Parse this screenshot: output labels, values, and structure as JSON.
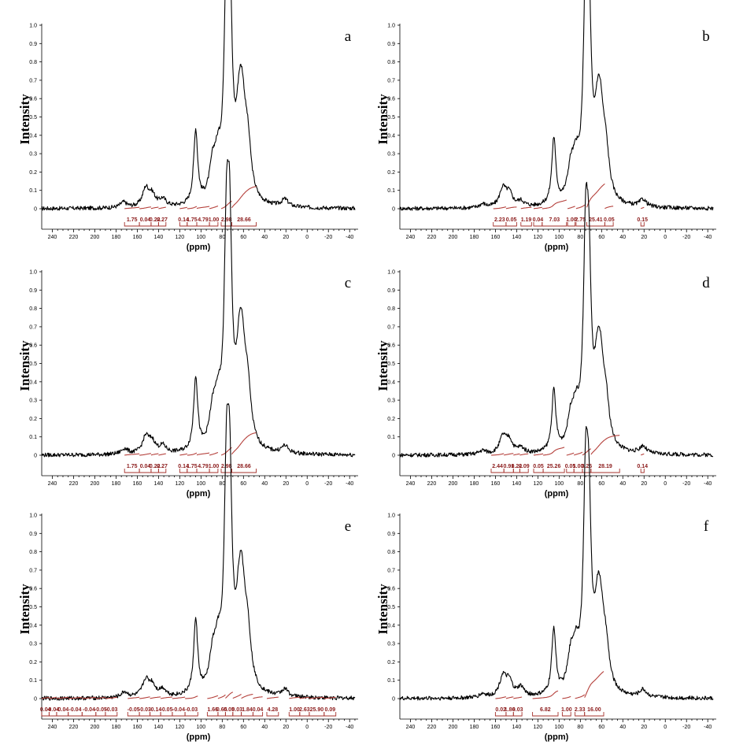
{
  "chart_data": [
    {
      "type": "line",
      "panel_label": "a",
      "ylabel": "Intensity",
      "xlabel": "(ppm)",
      "xlim": [
        250,
        -48
      ],
      "ylim": [
        -0.08,
        1.0
      ],
      "x_ticks": [
        "240",
        "220",
        "200",
        "180",
        "160",
        "140",
        "120",
        "100",
        "80",
        "60",
        "40",
        "20",
        "0",
        "-20",
        "-40"
      ],
      "y_ticks": [
        "0",
        "0.1",
        "0.2",
        "0.3",
        "0.4",
        "0.5",
        "0.6",
        "0.7",
        "0.8",
        "0.9",
        "1.0"
      ],
      "peaks": [
        [
          173,
          0.03
        ],
        [
          152,
          0.1
        ],
        [
          146,
          0.06
        ],
        [
          136,
          0.04
        ],
        [
          105,
          0.4
        ],
        [
          89,
          0.17
        ],
        [
          84,
          0.18
        ],
        [
          76,
          1.0
        ],
        [
          73,
          0.99
        ],
        [
          64,
          0.35
        ],
        [
          61,
          0.36
        ],
        [
          56,
          0.26
        ],
        [
          21,
          0.04
        ]
      ],
      "integrals": [
        {
          "from": 172,
          "to": 158,
          "label": "1.75"
        },
        {
          "from": 158,
          "to": 147,
          "label": "0.04"
        },
        {
          "from": 147,
          "to": 140,
          "label": "0.22"
        },
        {
          "from": 140,
          "to": 133,
          "label": "0.27"
        },
        {
          "from": 120,
          "to": 113,
          "label": "0.14"
        },
        {
          "from": 113,
          "to": 104,
          "label": "1.75"
        },
        {
          "from": 104,
          "to": 92,
          "label": "4.79"
        },
        {
          "from": 92,
          "to": 84,
          "label": "1.00"
        },
        {
          "from": 81,
          "to": 71,
          "label": "2.98"
        },
        {
          "from": 71,
          "to": 48,
          "label": "28.66"
        }
      ]
    },
    {
      "type": "line",
      "panel_label": "b",
      "ylabel": "Intensity",
      "xlabel": "(ppm)",
      "xlim": [
        250,
        -48
      ],
      "ylim": [
        -0.08,
        1.0
      ],
      "x_ticks": [
        "240",
        "220",
        "200",
        "180",
        "160",
        "140",
        "120",
        "100",
        "80",
        "60",
        "40",
        "20",
        "0",
        "-20",
        "-40"
      ],
      "y_ticks": [
        "0",
        "0.1",
        "0.2",
        "0.3",
        "0.4",
        "0.5",
        "0.6",
        "0.7",
        "0.8",
        "0.9",
        "1.0"
      ],
      "peaks": [
        [
          172,
          0.02
        ],
        [
          153,
          0.1
        ],
        [
          147,
          0.07
        ],
        [
          136,
          0.03
        ],
        [
          105,
          0.36
        ],
        [
          89,
          0.16
        ],
        [
          84,
          0.18
        ],
        [
          75,
          1.0
        ],
        [
          72,
          0.86
        ],
        [
          64,
          0.31
        ],
        [
          61,
          0.34
        ],
        [
          56,
          0.22
        ],
        [
          21,
          0.04
        ]
      ],
      "integrals": [
        {
          "from": 162,
          "to": 150,
          "label": "2.23"
        },
        {
          "from": 150,
          "to": 140,
          "label": "0.05"
        },
        {
          "from": 136,
          "to": 126,
          "label": "1.19"
        },
        {
          "from": 124,
          "to": 116,
          "label": "0.04"
        },
        {
          "from": 116,
          "to": 93,
          "label": "7.03"
        },
        {
          "from": 92,
          "to": 85,
          "label": "1.00"
        },
        {
          "from": 84,
          "to": 76,
          "label": "2.75"
        },
        {
          "from": 74,
          "to": 57,
          "label": "25.41"
        },
        {
          "from": 57,
          "to": 49,
          "label": "0.05"
        },
        {
          "from": 23,
          "to": 20,
          "label": "0.15"
        }
      ]
    },
    {
      "type": "line",
      "panel_label": "c",
      "ylabel": "Intensity",
      "xlabel": "(ppm)",
      "xlim": [
        250,
        -48
      ],
      "ylim": [
        -0.08,
        1.0
      ],
      "x_ticks": [
        "240",
        "220",
        "200",
        "180",
        "160",
        "140",
        "120",
        "100",
        "80",
        "60",
        "40",
        "20",
        "0",
        "-20",
        "-40"
      ],
      "y_ticks": [
        "0",
        "0.1",
        "0.2",
        "0.3",
        "0.4",
        "0.5",
        "0.6",
        "0.7",
        "0.8",
        "0.9",
        "1.0"
      ],
      "peaks": [
        [
          172,
          0.03
        ],
        [
          152,
          0.09
        ],
        [
          146,
          0.06
        ],
        [
          136,
          0.04
        ],
        [
          105,
          0.4
        ],
        [
          89,
          0.17
        ],
        [
          84,
          0.2
        ],
        [
          76,
          1.0
        ],
        [
          73,
          0.98
        ],
        [
          64,
          0.36
        ],
        [
          61,
          0.37
        ],
        [
          56,
          0.26
        ],
        [
          21,
          0.04
        ]
      ],
      "integrals": [
        {
          "from": 172,
          "to": 158,
          "label": "1.75"
        },
        {
          "from": 158,
          "to": 147,
          "label": "0.04"
        },
        {
          "from": 147,
          "to": 140,
          "label": "0.22"
        },
        {
          "from": 140,
          "to": 133,
          "label": "0.27"
        },
        {
          "from": 120,
          "to": 113,
          "label": "0.14"
        },
        {
          "from": 113,
          "to": 104,
          "label": "1.75"
        },
        {
          "from": 104,
          "to": 92,
          "label": "4.79"
        },
        {
          "from": 92,
          "to": 84,
          "label": "1.00"
        },
        {
          "from": 81,
          "to": 71,
          "label": "2.98"
        },
        {
          "from": 71,
          "to": 48,
          "label": "28.66"
        }
      ]
    },
    {
      "type": "line",
      "panel_label": "d",
      "ylabel": "Intensity",
      "xlabel": "(ppm)",
      "xlim": [
        250,
        -48
      ],
      "ylim": [
        -0.08,
        1.0
      ],
      "x_ticks": [
        "240",
        "220",
        "200",
        "180",
        "160",
        "140",
        "120",
        "100",
        "80",
        "60",
        "40",
        "20",
        "0",
        "-20",
        "-40"
      ],
      "y_ticks": [
        "0",
        "0.1",
        "0.2",
        "0.3",
        "0.4",
        "0.5",
        "0.6",
        "0.7",
        "0.8",
        "0.9",
        "1.0"
      ],
      "peaks": [
        [
          172,
          0.02
        ],
        [
          153,
          0.09
        ],
        [
          147,
          0.07
        ],
        [
          136,
          0.03
        ],
        [
          105,
          0.33
        ],
        [
          89,
          0.15
        ],
        [
          84,
          0.17
        ],
        [
          75,
          1.0
        ],
        [
          72,
          0.8
        ],
        [
          64,
          0.3
        ],
        [
          61,
          0.32
        ],
        [
          56,
          0.21
        ],
        [
          21,
          0.04
        ]
      ],
      "integrals": [
        {
          "from": 164,
          "to": 152,
          "label": "2.44"
        },
        {
          "from": 152,
          "to": 143,
          "label": "0.91"
        },
        {
          "from": 143,
          "to": 137,
          "label": "0.22"
        },
        {
          "from": 137,
          "to": 129,
          "label": "0.09"
        },
        {
          "from": 124,
          "to": 115,
          "label": "0.05"
        },
        {
          "from": 115,
          "to": 95,
          "label": "25.26"
        },
        {
          "from": 93,
          "to": 86,
          "label": "0.05"
        },
        {
          "from": 86,
          "to": 78,
          "label": "1.00"
        },
        {
          "from": 78,
          "to": 70,
          "label": "3.26"
        },
        {
          "from": 70,
          "to": 43,
          "label": "28.19"
        },
        {
          "from": 23,
          "to": 20,
          "label": "0.14"
        }
      ]
    },
    {
      "type": "line",
      "panel_label": "e",
      "ylabel": "Intensity",
      "xlabel": "(ppm)",
      "xlim": [
        250,
        -48
      ],
      "ylim": [
        -0.08,
        1.0
      ],
      "x_ticks": [
        "240",
        "220",
        "200",
        "180",
        "160",
        "140",
        "120",
        "100",
        "80",
        "60",
        "40",
        "20",
        "0",
        "-20",
        "-40"
      ],
      "y_ticks": [
        "0",
        "0.1",
        "0.2",
        "0.3",
        "0.4",
        "0.5",
        "0.6",
        "0.7",
        "0.8",
        "0.9",
        "1.0"
      ],
      "peaks": [
        [
          172,
          0.03
        ],
        [
          152,
          0.09
        ],
        [
          146,
          0.06
        ],
        [
          136,
          0.04
        ],
        [
          105,
          0.4
        ],
        [
          89,
          0.17
        ],
        [
          84,
          0.2
        ],
        [
          76,
          1.0
        ],
        [
          73,
          0.98
        ],
        [
          64,
          0.36
        ],
        [
          61,
          0.37
        ],
        [
          56,
          0.26
        ],
        [
          21,
          0.04
        ]
      ],
      "integrals": [
        {
          "from": 250,
          "to": 243,
          "label": "0.04"
        },
        {
          "from": 243,
          "to": 236,
          "label": "-0.04"
        },
        {
          "from": 236,
          "to": 225,
          "label": "-0.04"
        },
        {
          "from": 225,
          "to": 212,
          "label": "-0.04"
        },
        {
          "from": 212,
          "to": 199,
          "label": "-0.04"
        },
        {
          "from": 199,
          "to": 190,
          "label": "-0.05"
        },
        {
          "from": 190,
          "to": 179,
          "label": "-0.03"
        },
        {
          "from": 169,
          "to": 158,
          "label": "-0.05"
        },
        {
          "from": 158,
          "to": 148,
          "label": "-0.03"
        },
        {
          "from": 148,
          "to": 138,
          "label": "-0.14"
        },
        {
          "from": 138,
          "to": 127,
          "label": "-0.05"
        },
        {
          "from": 127,
          "to": 115,
          "label": "-0.04"
        },
        {
          "from": 115,
          "to": 103,
          "label": "-0.03"
        },
        {
          "from": 94,
          "to": 84,
          "label": "1.66"
        },
        {
          "from": 84,
          "to": 77,
          "label": "0.65"
        },
        {
          "from": 77,
          "to": 70,
          "label": "0.05"
        },
        {
          "from": 70,
          "to": 62,
          "label": "0.03"
        },
        {
          "from": 62,
          "to": 51,
          "label": "1.84"
        },
        {
          "from": 51,
          "to": 42,
          "label": "0.04"
        },
        {
          "from": 38,
          "to": 27,
          "label": "4.28"
        },
        {
          "from": 17,
          "to": 7,
          "label": "1.00"
        },
        {
          "from": 7,
          "to": -2,
          "label": "2.63"
        },
        {
          "from": -2,
          "to": -16,
          "label": "25.90"
        },
        {
          "from": -16,
          "to": -27,
          "label": "0.09"
        }
      ]
    },
    {
      "type": "line",
      "panel_label": "f",
      "ylabel": "Intensity",
      "xlabel": "(ppm)",
      "xlim": [
        250,
        -48
      ],
      "ylim": [
        -0.08,
        1.0
      ],
      "x_ticks": [
        "240",
        "220",
        "200",
        "180",
        "160",
        "140",
        "120",
        "100",
        "80",
        "60",
        "40",
        "20",
        "0",
        "-20",
        "-40"
      ],
      "y_ticks": [
        "0",
        "0.1",
        "0.2",
        "0.3",
        "0.4",
        "0.5",
        "0.6",
        "0.7",
        "0.8",
        "0.9",
        "1.0"
      ],
      "peaks": [
        [
          172,
          0.02
        ],
        [
          153,
          0.11
        ],
        [
          147,
          0.08
        ],
        [
          136,
          0.05
        ],
        [
          105,
          0.36
        ],
        [
          89,
          0.17
        ],
        [
          84,
          0.19
        ],
        [
          75,
          1.0
        ],
        [
          72,
          0.8
        ],
        [
          64,
          0.3
        ],
        [
          61,
          0.31
        ],
        [
          56,
          0.2
        ],
        [
          21,
          0.04
        ]
      ],
      "integrals": [
        {
          "from": 160,
          "to": 150,
          "label": "0.02"
        },
        {
          "from": 150,
          "to": 143,
          "label": "1.86"
        },
        {
          "from": 143,
          "to": 135,
          "label": "0.03"
        },
        {
          "from": 125,
          "to": 101,
          "label": "6.82"
        },
        {
          "from": 97,
          "to": 89,
          "label": "1.00"
        },
        {
          "from": 85,
          "to": 76,
          "label": "2.33"
        },
        {
          "from": 76,
          "to": 58,
          "label": "16.00"
        }
      ]
    }
  ]
}
